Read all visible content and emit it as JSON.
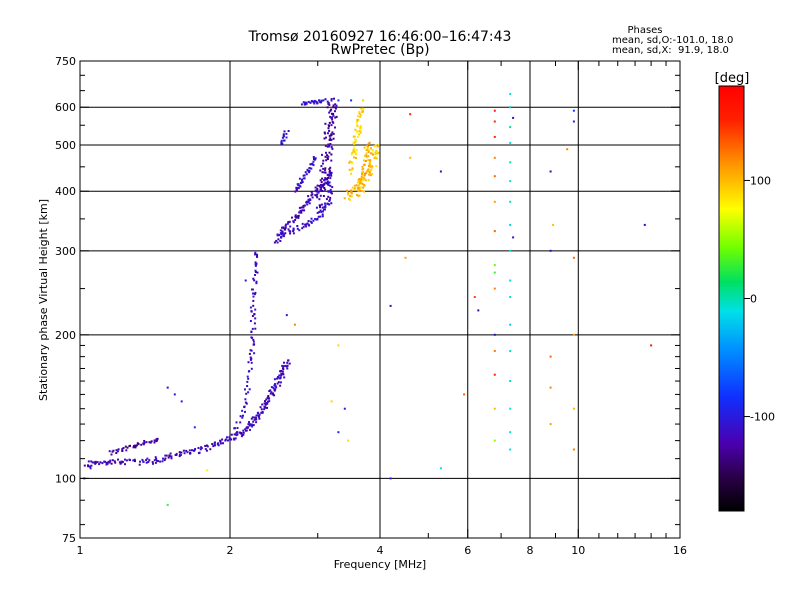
{
  "chart_data": {
    "type": "scatter",
    "title": "Tromsø 20160927 16:46:00–16:47:43",
    "subtitle": "RwPretec (Bp)",
    "xlabel": "Frequency [MHz]",
    "ylabel": "Stationary phase Virtual Height [km]",
    "x_scale": "log2",
    "y_scale": "log",
    "xlim": [
      1,
      16
    ],
    "ylim": [
      75,
      750
    ],
    "x_ticks": [
      1,
      2,
      4,
      6,
      8,
      10,
      16
    ],
    "x_tick_labels": [
      "1",
      "2",
      "4",
      "6",
      "8",
      "10",
      "16"
    ],
    "x_minor_ticks": [
      3,
      5,
      7,
      9,
      11,
      12,
      13,
      14,
      15
    ],
    "y_ticks": [
      75,
      100,
      200,
      300,
      400,
      500,
      600,
      750
    ],
    "y_tick_labels": [
      "75",
      "100",
      "200",
      "300",
      "400",
      "500",
      "600",
      "750"
    ],
    "y_minor_ticks": [
      80,
      90,
      110,
      120,
      130,
      140,
      150,
      160,
      170,
      180,
      190,
      250,
      350,
      450,
      550,
      650,
      700
    ],
    "x_grid": [
      2,
      4,
      6,
      8,
      10
    ],
    "y_grid": [
      100,
      200,
      300,
      400,
      500,
      600
    ],
    "grid": true,
    "stats": {
      "heading": "Phases",
      "line1": "mean, sd,O:-101.0, 18.0",
      "line2": "mean, sd,X:  91.9, 18.0"
    },
    "colorbar": {
      "label": "[deg]",
      "min": -180,
      "max": 180,
      "ticks": [
        100,
        0,
        -100
      ],
      "tick_labels": [
        "100",
        "0",
        "-100"
      ]
    },
    "traces": [
      {
        "points": [
          [
            1.03,
            107
          ],
          [
            1.1,
            108
          ],
          [
            1.18,
            108
          ],
          [
            1.3,
            108
          ],
          [
            1.42,
            109
          ],
          [
            1.52,
            111
          ],
          [
            1.62,
            113
          ],
          [
            1.75,
            115
          ],
          [
            1.88,
            118
          ],
          [
            2.0,
            121
          ],
          [
            2.1,
            124
          ],
          [
            2.18,
            128
          ],
          [
            2.25,
            133
          ],
          [
            2.32,
            139
          ],
          [
            2.38,
            146
          ],
          [
            2.44,
            153
          ],
          [
            2.5,
            160
          ],
          [
            2.56,
            168
          ],
          [
            2.62,
            176
          ]
        ],
        "phase": -118,
        "spread": 0.028
      },
      {
        "points": [
          [
            1.15,
            113
          ],
          [
            1.25,
            116
          ],
          [
            1.35,
            119
          ],
          [
            1.45,
            121
          ]
        ],
        "phase": -125,
        "spread": 0.018
      },
      {
        "points": [
          [
            2.05,
            125
          ],
          [
            2.15,
            145
          ],
          [
            2.2,
            175
          ],
          [
            2.22,
            200
          ],
          [
            2.23,
            230
          ],
          [
            2.25,
            270
          ],
          [
            2.27,
            300
          ]
        ],
        "phase": -112,
        "spread": 0.025
      },
      {
        "points": [
          [
            2.48,
            315
          ],
          [
            2.55,
            330
          ],
          [
            2.65,
            345
          ],
          [
            2.75,
            360
          ],
          [
            2.85,
            380
          ],
          [
            2.95,
            395
          ],
          [
            3.05,
            410
          ],
          [
            3.15,
            425
          ],
          [
            3.2,
            440
          ]
        ],
        "phase": -118,
        "spread": 0.03
      },
      {
        "points": [
          [
            2.5,
            320
          ],
          [
            2.7,
            330
          ],
          [
            2.9,
            345
          ],
          [
            3.05,
            360
          ],
          [
            3.15,
            380
          ],
          [
            3.2,
            420
          ]
        ],
        "phase": -110,
        "spread": 0.03
      },
      {
        "points": [
          [
            3.0,
            370
          ],
          [
            3.05,
            420
          ],
          [
            3.1,
            470
          ],
          [
            3.15,
            530
          ],
          [
            3.18,
            580
          ],
          [
            3.2,
            630
          ]
        ],
        "phase": -122,
        "spread": 0.035
      },
      {
        "points": [
          [
            3.1,
            380
          ],
          [
            3.15,
            460
          ],
          [
            3.2,
            540
          ],
          [
            3.25,
            620
          ]
        ],
        "phase": -128,
        "spread": 0.03
      },
      {
        "points": [
          [
            2.7,
            400
          ],
          [
            2.78,
            420
          ],
          [
            2.88,
            445
          ],
          [
            2.98,
            470
          ]
        ],
        "phase": -110,
        "spread": 0.02
      },
      {
        "points": [
          [
            2.55,
            500
          ],
          [
            2.6,
            540
          ]
        ],
        "phase": -105,
        "spread": 0.02
      },
      {
        "points": [
          [
            2.8,
            610
          ],
          [
            2.95,
            615
          ],
          [
            3.1,
            620
          ]
        ],
        "phase": -108,
        "spread": 0.015
      },
      {
        "points": [
          [
            3.45,
            390
          ],
          [
            3.55,
            400
          ],
          [
            3.65,
            415
          ],
          [
            3.75,
            430
          ],
          [
            3.85,
            450
          ],
          [
            3.9,
            475
          ],
          [
            3.93,
            500
          ]
        ],
        "phase": 98,
        "spread": 0.04
      },
      {
        "points": [
          [
            3.65,
            390
          ],
          [
            3.7,
            430
          ],
          [
            3.75,
            470
          ],
          [
            3.8,
            510
          ]
        ],
        "phase": 105,
        "spread": 0.03
      },
      {
        "points": [
          [
            3.5,
            440
          ],
          [
            3.55,
            480
          ],
          [
            3.6,
            520
          ],
          [
            3.65,
            550
          ]
        ],
        "phase": 88,
        "spread": 0.03
      },
      {
        "points": [
          [
            3.6,
            560
          ],
          [
            3.7,
            600
          ]
        ],
        "phase": 95,
        "spread": 0.015
      }
    ],
    "scatter": [
      [
        1.02,
        100,
        -95
      ],
      [
        1.05,
        105,
        -100
      ],
      [
        1.5,
        155,
        -110
      ],
      [
        1.55,
        150,
        -105
      ],
      [
        1.6,
        145,
        -95
      ],
      [
        1.7,
        128,
        -90
      ],
      [
        1.8,
        104,
        80
      ],
      [
        1.5,
        88,
        30
      ],
      [
        2.15,
        260,
        -105
      ],
      [
        2.6,
        220,
        -100
      ],
      [
        2.7,
        210,
        120
      ],
      [
        3.3,
        190,
        90
      ],
      [
        3.3,
        125,
        -95
      ],
      [
        3.4,
        140,
        -100
      ],
      [
        3.45,
        120,
        85
      ],
      [
        3.2,
        145,
        90
      ],
      [
        3.5,
        620,
        -90
      ],
      [
        3.3,
        620,
        -80
      ],
      [
        3.7,
        620,
        95
      ],
      [
        4.2,
        230,
        -115
      ],
      [
        4.2,
        100,
        -95
      ],
      [
        4.6,
        580,
        150
      ],
      [
        4.6,
        470,
        100
      ],
      [
        4.5,
        290,
        110
      ],
      [
        5.3,
        440,
        -110
      ],
      [
        5.3,
        105,
        -10
      ],
      [
        5.9,
        150,
        130
      ],
      [
        6.2,
        240,
        140
      ],
      [
        6.3,
        225,
        -120
      ],
      [
        6.8,
        590,
        160
      ],
      [
        6.8,
        560,
        150
      ],
      [
        6.8,
        520,
        150
      ],
      [
        6.8,
        470,
        120
      ],
      [
        6.8,
        430,
        130
      ],
      [
        6.8,
        380,
        110
      ],
      [
        6.8,
        330,
        130
      ],
      [
        6.8,
        280,
        40
      ],
      [
        6.8,
        270,
        30
      ],
      [
        6.8,
        250,
        120
      ],
      [
        6.8,
        200,
        -115
      ],
      [
        6.8,
        185,
        120
      ],
      [
        6.8,
        165,
        150
      ],
      [
        6.8,
        140,
        100
      ],
      [
        6.8,
        120,
        50
      ],
      [
        7.3,
        640,
        -10
      ],
      [
        7.3,
        600,
        -20
      ],
      [
        7.3,
        545,
        10
      ],
      [
        7.3,
        505,
        -15
      ],
      [
        7.3,
        460,
        0
      ],
      [
        7.3,
        420,
        -10
      ],
      [
        7.3,
        380,
        -5
      ],
      [
        7.3,
        340,
        -20
      ],
      [
        7.3,
        300,
        -10
      ],
      [
        7.3,
        260,
        -15
      ],
      [
        7.3,
        240,
        -10
      ],
      [
        7.3,
        210,
        -20
      ],
      [
        7.3,
        185,
        -5
      ],
      [
        7.3,
        160,
        -15
      ],
      [
        7.3,
        140,
        -10
      ],
      [
        7.3,
        125,
        -5
      ],
      [
        7.3,
        115,
        -10
      ],
      [
        7.4,
        570,
        -120
      ],
      [
        7.4,
        320,
        -110
      ],
      [
        8.8,
        440,
        -120
      ],
      [
        8.8,
        300,
        -115
      ],
      [
        8.9,
        340,
        100
      ],
      [
        8.8,
        180,
        130
      ],
      [
        8.8,
        155,
        120
      ],
      [
        8.8,
        130,
        110
      ],
      [
        9.5,
        490,
        120
      ],
      [
        9.8,
        590,
        -80
      ],
      [
        9.8,
        560,
        -90
      ],
      [
        9.8,
        290,
        130
      ],
      [
        9.8,
        200,
        110
      ],
      [
        9.8,
        140,
        100
      ],
      [
        9.8,
        115,
        120
      ],
      [
        13.6,
        340,
        -120
      ],
      [
        14.0,
        190,
        160
      ]
    ]
  }
}
